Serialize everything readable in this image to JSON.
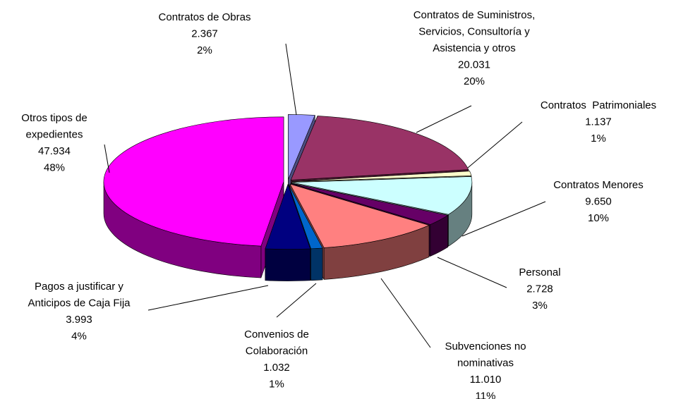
{
  "chart_data": {
    "type": "pie3d",
    "categories": [
      [
        "Contratos de Obras"
      ],
      [
        "Contratos de Suministros,",
        "Servicios, Consultoría y",
        "Asistencia y otros"
      ],
      [
        "Contratos  Patrimoniales"
      ],
      [
        "Contratos Menores"
      ],
      [
        "Personal"
      ],
      [
        "Subvenciones no",
        "nominativas"
      ],
      [
        "Convenios de",
        "Colaboración"
      ],
      [
        "Pagos a justificar y",
        "Anticipos de Caja Fija"
      ],
      [
        "Otros tipos de",
        "expedientes"
      ]
    ],
    "values": [
      2367,
      20031,
      1137,
      9650,
      2728,
      11010,
      1032,
      3993,
      47934
    ],
    "value_labels": [
      "2.367",
      "20.031",
      "1.137",
      "9.650",
      "2.728",
      "11.010",
      "1.032",
      "3.993",
      "47.934"
    ],
    "percent_labels": [
      "2%",
      "20%",
      "1%",
      "10%",
      "3%",
      "11%",
      "1%",
      "4%",
      "48%"
    ],
    "colors": [
      "#9999ff",
      "#993366",
      "#ffffcc",
      "#ccffff",
      "#660066",
      "#ff8080",
      "#0066cc",
      "#000080",
      "#ff00ff"
    ]
  }
}
